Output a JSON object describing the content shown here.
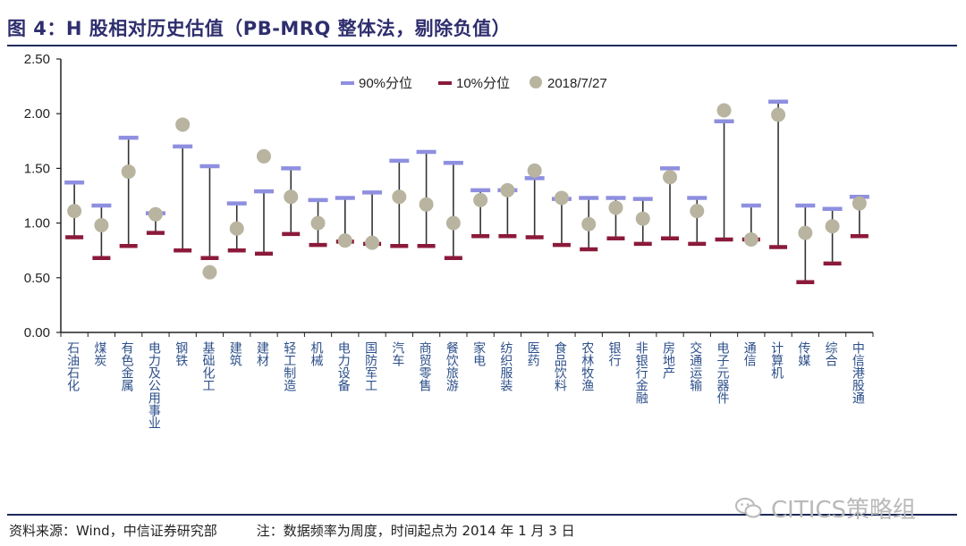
{
  "header": {
    "title": "图 4：H 股相对历史估值（PB-MRQ 整体法，剔除负值）"
  },
  "footer": {
    "source": "资料来源：Wind，中信证券研究部",
    "note": "注：数据频率为周度，时间起点为 2014 年 1 月 3 日",
    "watermark": "CITICS策略组"
  },
  "colors": {
    "p90": "#8f8fe0",
    "p10": "#8b1a3a",
    "current": "#b8b4a0",
    "range_line": "#333333",
    "axis": "#222222",
    "category_text": "#2c4f8a"
  },
  "chart_data": {
    "type": "range-dot",
    "title": "图 4：H 股相对历史估值（PB-MRQ 整体法，剔除负值）",
    "ylim": [
      0,
      2.5
    ],
    "yticks": [
      "0.00",
      "0.50",
      "1.00",
      "1.50",
      "2.00",
      "2.50"
    ],
    "legend": {
      "position": "top-center",
      "p90_label": "90%分位",
      "p10_label": "10%分位",
      "current_label": "2018/7/27"
    },
    "categories": [
      "石油石化",
      "煤炭",
      "有色金属",
      "电力及公用事业",
      "钢铁",
      "基础化工",
      "建筑",
      "建材",
      "轻工制造",
      "机械",
      "电力设备",
      "国防军工",
      "汽车",
      "商贸零售",
      "餐饮旅游",
      "家电",
      "纺织服装",
      "医药",
      "食品饮料",
      "农林牧渔",
      "银行",
      "非银行金融",
      "房地产",
      "交通运输",
      "电子元器件",
      "通信",
      "计算机",
      "传媒",
      "综合",
      "中信港股通"
    ],
    "p90": [
      1.37,
      1.16,
      1.78,
      1.09,
      1.7,
      1.52,
      1.18,
      1.29,
      1.5,
      1.21,
      1.23,
      1.28,
      1.57,
      1.65,
      1.55,
      1.3,
      1.3,
      1.41,
      1.22,
      1.23,
      1.23,
      1.22,
      1.5,
      1.23,
      1.93,
      1.16,
      2.11,
      1.16,
      1.13,
      1.24
    ],
    "p10": [
      0.87,
      0.68,
      0.79,
      0.91,
      0.75,
      0.68,
      0.75,
      0.72,
      0.9,
      0.8,
      0.83,
      0.81,
      0.79,
      0.79,
      0.68,
      0.88,
      0.88,
      0.87,
      0.8,
      0.76,
      0.86,
      0.81,
      0.86,
      0.81,
      0.85,
      0.85,
      0.78,
      0.46,
      0.63,
      0.88
    ],
    "current": [
      1.11,
      0.98,
      1.47,
      1.08,
      1.9,
      0.55,
      0.95,
      1.61,
      1.24,
      1.0,
      0.84,
      0.82,
      1.24,
      1.17,
      1.0,
      1.21,
      1.3,
      1.48,
      1.23,
      0.99,
      1.14,
      1.04,
      1.42,
      1.11,
      2.03,
      0.85,
      1.99,
      0.91,
      0.97,
      1.18
    ]
  }
}
